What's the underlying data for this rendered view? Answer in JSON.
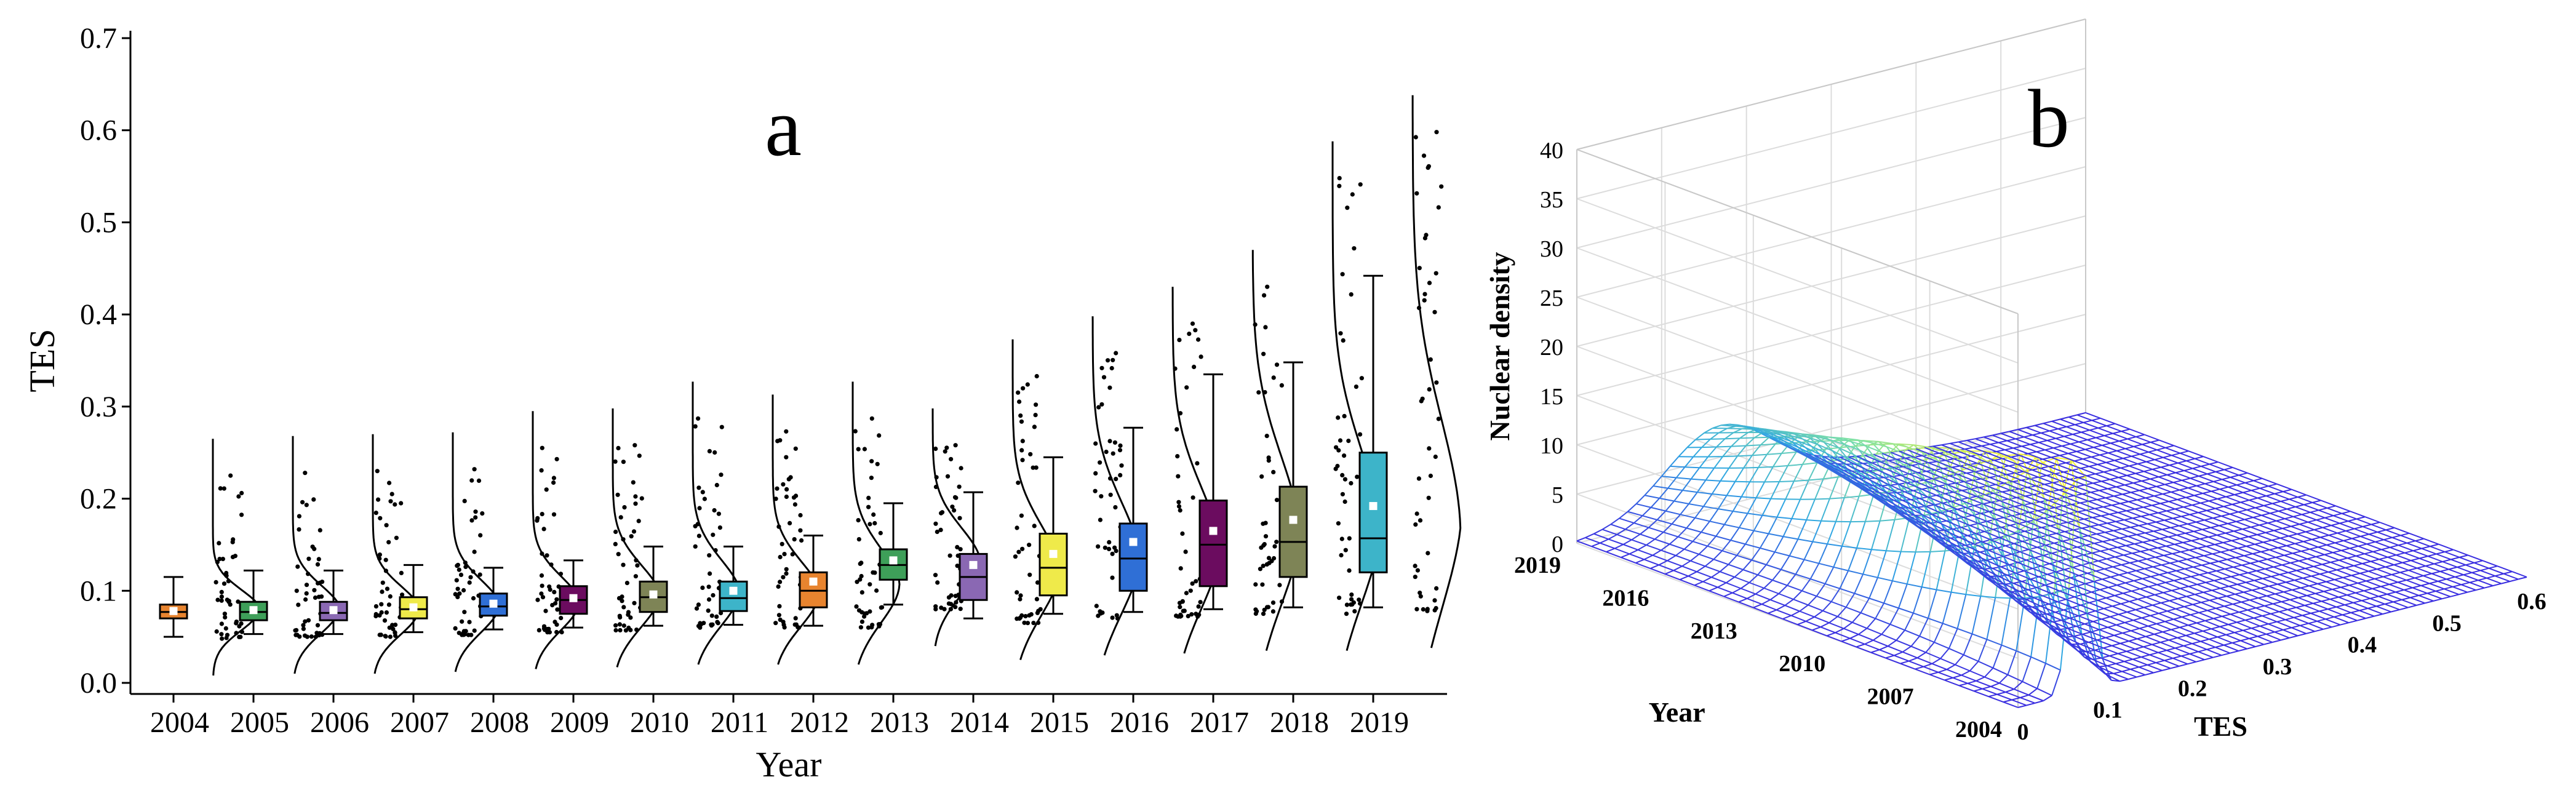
{
  "figure": {
    "panel_a_label": "a",
    "panel_b_label": "b"
  },
  "chart_data": [
    {
      "type": "box",
      "panel": "a",
      "title": "",
      "xlabel": "Year",
      "ylabel": "TES",
      "ylim": [
        0.0,
        0.7
      ],
      "yticks": [
        "0.0",
        "0.1",
        "0.2",
        "0.3",
        "0.4",
        "0.5",
        "0.6",
        "0.7"
      ],
      "grid": false,
      "legend": "none",
      "series": [
        {
          "year": "2004",
          "color": "#E8842F",
          "min": 0.05,
          "q1": 0.07,
          "median": 0.077,
          "q3": 0.085,
          "max": 0.115,
          "mean": 0.078,
          "pmin": 0.048,
          "pmax": 0.225
        },
        {
          "year": "2005",
          "color": "#3E9F59",
          "min": 0.053,
          "q1": 0.068,
          "median": 0.077,
          "q3": 0.088,
          "max": 0.122,
          "mean": 0.079,
          "pmin": 0.05,
          "pmax": 0.228
        },
        {
          "year": "2006",
          "color": "#8A68B3",
          "min": 0.053,
          "q1": 0.068,
          "median": 0.076,
          "q3": 0.088,
          "max": 0.122,
          "mean": 0.079,
          "pmin": 0.05,
          "pmax": 0.23
        },
        {
          "year": "2007",
          "color": "#EFEA4A",
          "min": 0.055,
          "q1": 0.07,
          "median": 0.08,
          "q3": 0.093,
          "max": 0.128,
          "mean": 0.082,
          "pmin": 0.052,
          "pmax": 0.232
        },
        {
          "year": "2008",
          "color": "#2F6FD6",
          "min": 0.058,
          "q1": 0.073,
          "median": 0.083,
          "q3": 0.097,
          "max": 0.125,
          "mean": 0.086,
          "pmin": 0.055,
          "pmax": 0.255
        },
        {
          "year": "2009",
          "color": "#6B0C5F",
          "min": 0.06,
          "q1": 0.075,
          "median": 0.09,
          "q3": 0.105,
          "max": 0.133,
          "mean": 0.092,
          "pmin": 0.057,
          "pmax": 0.258
        },
        {
          "year": "2010",
          "color": "#7E8456",
          "min": 0.062,
          "q1": 0.077,
          "median": 0.093,
          "q3": 0.11,
          "max": 0.148,
          "mean": 0.096,
          "pmin": 0.06,
          "pmax": 0.287
        },
        {
          "year": "2011",
          "color": "#3DB4C9",
          "min": 0.063,
          "q1": 0.078,
          "median": 0.092,
          "q3": 0.11,
          "max": 0.148,
          "mean": 0.1,
          "pmin": 0.06,
          "pmax": 0.273
        },
        {
          "year": "2012",
          "color": "#E8842F",
          "min": 0.062,
          "q1": 0.082,
          "median": 0.1,
          "q3": 0.12,
          "max": 0.16,
          "mean": 0.11,
          "pmin": 0.06,
          "pmax": 0.287
        },
        {
          "year": "2013",
          "color": "#3E9F59",
          "min": 0.085,
          "q1": 0.112,
          "median": 0.128,
          "q3": 0.145,
          "max": 0.195,
          "mean": 0.133,
          "pmin": 0.08,
          "pmax": 0.258
        },
        {
          "year": "2014",
          "color": "#8A68B3",
          "min": 0.07,
          "q1": 0.09,
          "median": 0.115,
          "q3": 0.14,
          "max": 0.207,
          "mean": 0.128,
          "pmin": 0.065,
          "pmax": 0.333
        },
        {
          "year": "2015",
          "color": "#EFEA4A",
          "min": 0.075,
          "q1": 0.095,
          "median": 0.125,
          "q3": 0.162,
          "max": 0.245,
          "mean": 0.14,
          "pmin": 0.07,
          "pmax": 0.358
        },
        {
          "year": "2016",
          "color": "#2F6FD6",
          "min": 0.077,
          "q1": 0.1,
          "median": 0.135,
          "q3": 0.173,
          "max": 0.277,
          "mean": 0.153,
          "pmin": 0.072,
          "pmax": 0.39
        },
        {
          "year": "2017",
          "color": "#6B0C5F",
          "min": 0.08,
          "q1": 0.105,
          "median": 0.15,
          "q3": 0.198,
          "max": 0.335,
          "mean": 0.165,
          "pmin": 0.075,
          "pmax": 0.43
        },
        {
          "year": "2018",
          "color": "#7E8456",
          "min": 0.082,
          "q1": 0.115,
          "median": 0.153,
          "q3": 0.213,
          "max": 0.348,
          "mean": 0.177,
          "pmin": 0.075,
          "pmax": 0.548
        },
        {
          "year": "2019",
          "color": "#3DB4C9",
          "min": 0.082,
          "q1": 0.12,
          "median": 0.157,
          "q3": 0.25,
          "max": 0.442,
          "mean": 0.192,
          "pmin": 0.078,
          "pmax": 0.598
        }
      ]
    },
    {
      "type": "surface3d",
      "panel": "b",
      "title": "",
      "zlabel": "Nuclear density",
      "ylabel": "Year",
      "xlabel": "TES",
      "zticks": [
        "0",
        "5",
        "10",
        "15",
        "20",
        "25",
        "30",
        "35",
        "40"
      ],
      "zlim": [
        0,
        40
      ],
      "yticks": [
        "2019",
        "2016",
        "2013",
        "2010",
        "2007",
        "2004"
      ],
      "xticks": [
        "0",
        "0.1",
        "0.2",
        "0.3",
        "0.4",
        "0.5",
        "0.6"
      ],
      "xlim": [
        0,
        0.6
      ],
      "colormap": [
        "#3A2EE0",
        "#2FA6E3",
        "#7FE1A6",
        "#F2F23B"
      ]
    }
  ]
}
